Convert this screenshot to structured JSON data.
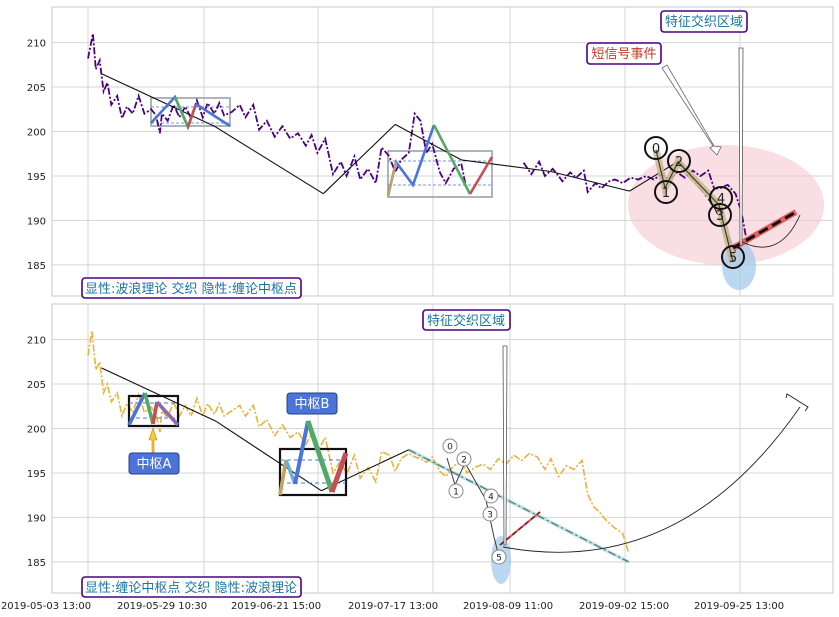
{
  "chart_data": [
    {
      "type": "line",
      "panel": "top",
      "ylim": [
        181.5,
        214
      ],
      "yticks": [
        185,
        190,
        195,
        200,
        205,
        210
      ],
      "series": [
        {
          "role": "price",
          "style": "purple-dashdot",
          "values": [
            [
              0,
              208.2
            ],
            [
              0.5,
              211
            ],
            [
              0.8,
              207
            ],
            [
              1.2,
              208
            ],
            [
              1.6,
              204.5
            ],
            [
              2,
              205.5
            ],
            [
              2.4,
              203
            ],
            [
              3,
              204
            ],
            [
              3.5,
              201.5
            ],
            [
              4,
              202.8
            ],
            [
              4.6,
              202
            ],
            [
              5.2,
              204
            ],
            [
              5.8,
              202
            ],
            [
              6.5,
              202.5
            ],
            [
              7,
              201.8
            ],
            [
              7.4,
              199.8
            ],
            [
              7.6,
              202
            ],
            [
              8.2,
              201.2
            ],
            [
              8.8,
              203
            ],
            [
              9.4,
              201.6
            ],
            [
              10,
              202.8
            ],
            [
              10.6,
              201.5
            ],
            [
              11.2,
              203.5
            ],
            [
              11.8,
              201.6
            ],
            [
              12.3,
              203.2
            ],
            [
              13,
              202
            ],
            [
              13.5,
              203.2
            ],
            [
              14,
              201.8
            ],
            [
              14.8,
              202.2
            ],
            [
              15.6,
              203
            ],
            [
              16.2,
              201.6
            ],
            [
              17,
              203
            ],
            [
              17.6,
              200.2
            ],
            [
              18.4,
              201.2
            ],
            [
              19.2,
              199.4
            ],
            [
              20,
              200.6
            ],
            [
              20.8,
              199.2
            ],
            [
              21.6,
              199.8
            ],
            [
              22.4,
              198.4
            ],
            [
              23,
              199.6
            ],
            [
              23.6,
              197.6
            ],
            [
              24.4,
              199.2
            ],
            [
              25.2,
              195.2
            ],
            [
              26,
              196.6
            ],
            [
              26.6,
              195
            ],
            [
              27.4,
              197.2
            ],
            [
              28,
              194.6
            ],
            [
              28.8,
              195.8
            ],
            [
              29.6,
              194.2
            ],
            [
              30.2,
              198.2
            ],
            [
              31,
              197.2
            ],
            [
              31.6,
              195.4
            ],
            [
              32.2,
              196.8
            ],
            [
              33,
              197.6
            ],
            [
              33.6,
              202
            ],
            [
              34.2,
              201.2
            ],
            [
              34.8,
              197.6
            ],
            [
              35.4,
              198.6
            ],
            [
              36.2,
              195.4
            ],
            [
              36.8,
              194.2
            ],
            [
              37.6,
              195.8
            ],
            [
              38.4,
              196.4
            ],
            [
              38.8,
              194.2
            ]
          ]
        },
        {
          "role": "price",
          "style": "purple-dashdot",
          "values": [
            [
              44.8,
              196.5
            ],
            [
              45.6,
              195.2
            ],
            [
              46.4,
              196.6
            ],
            [
              47,
              195
            ],
            [
              47.8,
              195.8
            ],
            [
              48.4,
              195
            ],
            [
              48.8,
              194.4
            ],
            [
              49.6,
              195.4
            ],
            [
              50.2,
              194.8
            ],
            [
              51,
              195.6
            ],
            [
              51.4,
              193.2
            ],
            [
              52.2,
              194.2
            ],
            [
              52.8,
              193.6
            ],
            [
              53.6,
              194.4
            ],
            [
              54.2,
              194.6
            ],
            [
              55,
              194.2
            ],
            [
              55.8,
              194.8
            ],
            [
              56.6,
              194.6
            ],
            [
              57.4,
              195
            ],
            [
              58.2,
              194.6
            ],
            [
              59,
              195.2
            ],
            [
              59.8,
              194.6
            ],
            [
              60.6,
              195.4
            ],
            [
              61.4,
              194.8
            ],
            [
              62.2,
              195.6
            ],
            [
              63,
              195
            ],
            [
              63.8,
              195.6
            ],
            [
              64.4,
              193.6
            ],
            [
              65,
              193.6
            ],
            [
              65.8,
              194
            ],
            [
              66.6,
              193
            ],
            [
              67.2,
              191
            ],
            [
              67.8,
              187.4
            ]
          ]
        }
      ],
      "waves": [
        {
          "points": [
            [
              1.4,
              206.5
            ],
            [
              13,
              200.6
            ]
          ]
        },
        {
          "points": [
            [
              13,
              200.6
            ],
            [
              24.2,
              193
            ]
          ]
        },
        {
          "points": [
            [
              24.2,
              193
            ],
            [
              31.6,
              200.8
            ]
          ]
        },
        {
          "points": [
            [
              31.6,
              200.8
            ],
            [
              38.4,
              196.8
            ]
          ]
        },
        {
          "points": [
            [
              38.4,
              196.8
            ],
            [
              47.6,
              195.5
            ]
          ]
        },
        {
          "points": [
            [
              47.6,
              195.5
            ],
            [
              55.7,
              193.3
            ]
          ]
        },
        {
          "points": [
            [
              55.7,
              193.3
            ],
            [
              60.8,
              196.7
            ]
          ]
        },
        {
          "points": [
            [
              60.8,
              196.7
            ],
            [
              64.4,
              191.5
            ]
          ]
        },
        {
          "points": [
            [
              64.4,
              191.5
            ],
            [
              66.6,
              186.5
            ]
          ]
        }
      ],
      "annotations": [
        {
          "text": "特征交织区域",
          "type": "label-box",
          "color": "#1a75a0",
          "border": "#4b0082"
        },
        {
          "text": "短信号事件",
          "type": "label-box",
          "color": "#c0392b",
          "border": "#4b0082"
        },
        {
          "text": "显性:波浪理论 交织 隐性:缠论中枢点",
          "type": "label-box",
          "color": "#1a75a0",
          "border": "#4b0082"
        }
      ],
      "points": [
        {
          "label": "0",
          "x": 60.2,
          "y": 196.8
        },
        {
          "label": "1",
          "x": 60.6,
          "y": 195.1
        },
        {
          "label": "2",
          "x": 61.4,
          "y": 195.8
        },
        {
          "label": "3",
          "x": 64.1,
          "y": 191.4
        },
        {
          "label": "4",
          "x": 64.6,
          "y": 191.8
        },
        {
          "label": "5",
          "x": 66.2,
          "y": 186.6
        }
      ],
      "grid": true
    },
    {
      "type": "line",
      "panel": "bottom",
      "ylim": [
        181.5,
        214
      ],
      "yticks": [
        185,
        190,
        195,
        200,
        205,
        210
      ],
      "xticklabels": [
        "2019-05-03 13:00",
        "2019-05-29 10:30",
        "2019-06-21 15:00",
        "2019-07-17 13:00",
        "2019-08-09 11:00",
        "2019-09-02 15:00",
        "2019-09-25 13:00"
      ],
      "series": [
        {
          "role": "price",
          "style": "orange-dashdot",
          "values": [
            [
              0,
              208.2
            ],
            [
              0.4,
              211
            ],
            [
              0.8,
              206.6
            ],
            [
              1.2,
              207.5
            ],
            [
              1.6,
              204
            ],
            [
              2,
              205
            ],
            [
              2.4,
              203
            ],
            [
              3,
              204
            ],
            [
              3.5,
              201.4
            ],
            [
              4,
              202.8
            ],
            [
              4.6,
              201.8
            ],
            [
              5.2,
              203.8
            ],
            [
              5.8,
              201.8
            ],
            [
              6.5,
              202.4
            ],
            [
              7,
              201.6
            ],
            [
              7.4,
              199.6
            ],
            [
              7.6,
              202
            ],
            [
              8.2,
              201.2
            ],
            [
              8.8,
              203
            ],
            [
              9.4,
              201.4
            ],
            [
              10,
              202.6
            ],
            [
              10.6,
              201.4
            ],
            [
              11.2,
              203.4
            ],
            [
              11.8,
              201.4
            ],
            [
              12.3,
              202.8
            ],
            [
              13,
              201.6
            ],
            [
              13.5,
              202.8
            ],
            [
              14,
              201.4
            ],
            [
              14.8,
              202
            ],
            [
              15.6,
              202.6
            ],
            [
              16.2,
              201.4
            ],
            [
              17,
              202.6
            ],
            [
              17.6,
              200.2
            ],
            [
              18.4,
              201
            ],
            [
              19.2,
              199.2
            ],
            [
              20,
              200.4
            ],
            [
              20.8,
              199
            ],
            [
              21.6,
              199.6
            ],
            [
              22.4,
              198.2
            ],
            [
              23,
              199.4
            ],
            [
              23.6,
              197.4
            ],
            [
              24.4,
              199
            ],
            [
              25.2,
              195
            ],
            [
              26,
              196.4
            ],
            [
              26.6,
              194.8
            ],
            [
              27.4,
              197
            ],
            [
              28,
              194.4
            ],
            [
              28.8,
              195.6
            ],
            [
              29.6,
              194
            ],
            [
              30.2,
              197.4
            ],
            [
              31,
              197
            ],
            [
              31.6,
              195.2
            ],
            [
              32.2,
              196.6
            ],
            [
              33,
              197.2
            ],
            [
              33.6,
              196.8
            ],
            [
              34.2,
              196.6
            ],
            [
              34.8,
              196.2
            ],
            [
              35.4,
              196.8
            ],
            [
              36.2,
              195.2
            ],
            [
              36.8,
              194.6
            ],
            [
              37.6,
              195.8
            ],
            [
              38.4,
              196.2
            ],
            [
              39,
              195
            ],
            [
              39.8,
              195.6
            ],
            [
              40.6,
              196
            ],
            [
              41.4,
              195.4
            ],
            [
              42.2,
              196.6
            ],
            [
              43,
              196
            ],
            [
              43.8,
              197
            ],
            [
              44.6,
              196.4
            ],
            [
              45.4,
              197.2
            ],
            [
              46.2,
              196.8
            ],
            [
              47,
              195.4
            ],
            [
              47.6,
              196.6
            ],
            [
              48.4,
              194.6
            ],
            [
              49.2,
              195.8
            ],
            [
              50,
              195.4
            ],
            [
              50.8,
              196.4
            ],
            [
              51.4,
              192.6
            ],
            [
              52,
              191.2
            ],
            [
              52.6,
              190.6
            ],
            [
              53.2,
              189.8
            ],
            [
              53.6,
              189.4
            ],
            [
              54.2,
              188.8
            ],
            [
              55,
              188.2
            ],
            [
              55.6,
              186
            ]
          ]
        }
      ],
      "waves": [
        {
          "points": [
            [
              1.4,
              206.8
            ],
            [
              13.2,
              200.8
            ]
          ]
        },
        {
          "points": [
            [
              13.2,
              200.8
            ],
            [
              24,
              193
            ]
          ]
        },
        {
          "points": [
            [
              24,
              193
            ],
            [
              33,
              197.6
            ]
          ]
        },
        {
          "points": [
            [
              33,
              197.6
            ],
            [
              55.6,
              185
            ]
          ]
        }
      ],
      "annotations": [
        {
          "text": "特征交织区域",
          "type": "label-box",
          "color": "#1a75a0",
          "border": "#4b0082"
        },
        {
          "text": "中枢B",
          "type": "label-box",
          "color": "#ffffff",
          "background": "#4a74d6"
        },
        {
          "text": "中枢A",
          "type": "label-box",
          "color": "#ffffff",
          "background": "#4a74d6"
        },
        {
          "text": "显性:缠论中枢点 交织 隐性:波浪理论",
          "type": "label-box",
          "color": "#1a75a0",
          "border": "#4b0082"
        }
      ],
      "points": [
        {
          "label": "0",
          "x": 49.8,
          "y": 198.2
        },
        {
          "label": "1",
          "x": 50.6,
          "y": 193.2
        },
        {
          "label": "2",
          "x": 51.4,
          "y": 196.8
        },
        {
          "label": "4",
          "x": 53.8,
          "y": 191.6
        },
        {
          "label": "3",
          "x": 53.6,
          "y": 190.2
        },
        {
          "label": "5",
          "x": 55.4,
          "y": 185.8
        }
      ],
      "grid": true
    }
  ]
}
